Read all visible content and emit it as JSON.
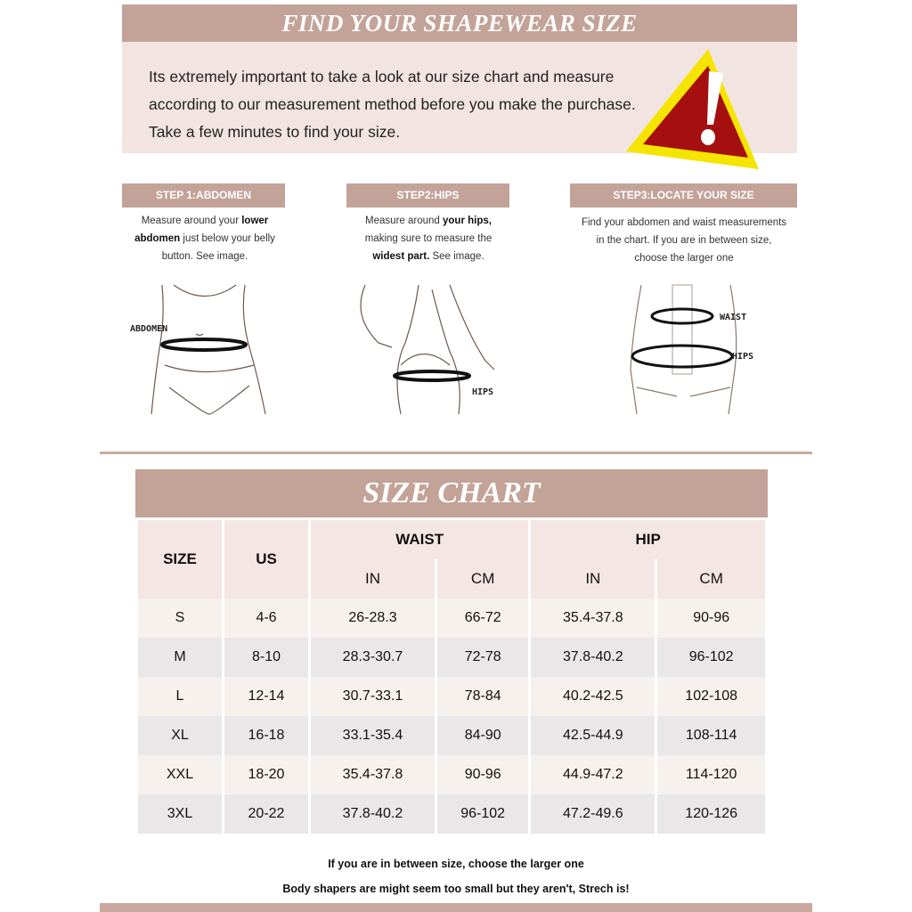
{
  "header": {
    "title": "FIND YOUR SHAPEWEAR SIZE",
    "intro": "Its extremely important to take a look at our size chart and measure according to our measurement method before you make the purchase. Take a few minutes to find your size.",
    "icon": "warning-icon"
  },
  "steps": [
    {
      "title": "STEP 1:ABDOMEN",
      "pre": "Measure around your ",
      "bold": "lower abdomen",
      "post": " just below your belly button. See image.",
      "label": "ABDOMEN"
    },
    {
      "title": "STEP2:HIPS",
      "pre": "Measure around ",
      "bold": "your hips,",
      "mid": " making sure to measure the ",
      "bold2": "widest part.",
      "post": " See image.",
      "label": "HIPS"
    },
    {
      "title": "STEP3:LOCATE YOUR SIZE",
      "text": "Find your abdomen and waist measurements in the chart. If you are in between size, choose the larger one",
      "label1": "WAIST",
      "label2": "HIPS"
    }
  ],
  "size_chart": {
    "title": "SIZE CHART",
    "headers": {
      "size": "SIZE",
      "us": "US",
      "waist": "WAIST",
      "hip": "HIP",
      "in": "IN",
      "cm": "CM"
    },
    "rows": [
      [
        "S",
        "4-6",
        "26-28.3",
        "66-72",
        "35.4-37.8",
        "90-96"
      ],
      [
        "M",
        "8-10",
        "28.3-30.7",
        "72-78",
        "37.8-40.2",
        "96-102"
      ],
      [
        "L",
        "12-14",
        "30.7-33.1",
        "78-84",
        "40.2-42.5",
        "102-108"
      ],
      [
        "XL",
        "16-18",
        "33.1-35.4",
        "84-90",
        "42.5-44.9",
        "108-114"
      ],
      [
        "XXL",
        "18-20",
        "35.4-37.8",
        "90-96",
        "44.9-47.2",
        "114-120"
      ],
      [
        "3XL",
        "20-22",
        "37.8-40.2",
        "96-102",
        "47.2-49.6",
        "120-126"
      ]
    ]
  },
  "notes": [
    "If you are in between size, choose the larger one",
    "Body shapers are might seem too small but they aren't, Strech is!"
  ],
  "colors": {
    "accent": "#c3a398",
    "panel": "#f2e5e1",
    "warning_red": "#a50f0f",
    "warning_yellow": "#f5e400"
  }
}
